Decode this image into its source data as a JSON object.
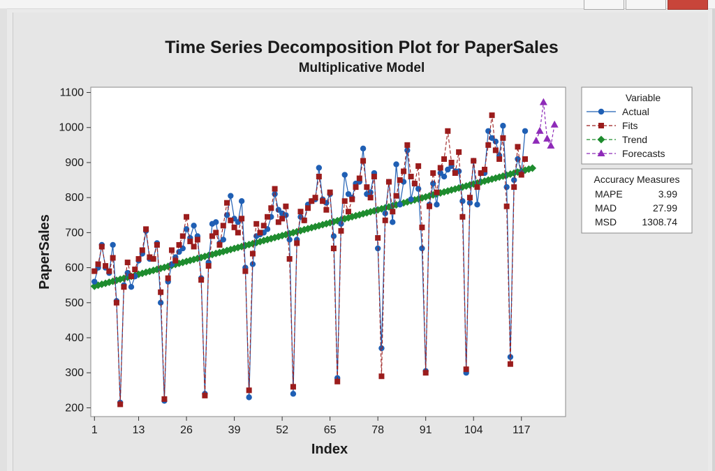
{
  "chart_data": {
    "type": "line",
    "title": "Time Series Decomposition Plot for PaperSales",
    "subtitle": "Multiplicative Model",
    "xlabel": "Index",
    "ylabel": "PaperSales",
    "xlim": [
      0,
      129
    ],
    "ylim": [
      175,
      1115
    ],
    "x_ticks": [
      1,
      13,
      26,
      39,
      52,
      65,
      78,
      91,
      104,
      117
    ],
    "y_ticks": [
      200,
      300,
      400,
      500,
      600,
      700,
      800,
      900,
      1000,
      1100
    ],
    "grid": false,
    "legend_position": "right",
    "legend_title": "Variable",
    "series": [
      {
        "name": "Actual",
        "color": "#1f5fb4",
        "marker": "circle",
        "line": "solid",
        "x_start": 1,
        "values": [
          560,
          600,
          665,
          600,
          585,
          665,
          505,
          215,
          550,
          585,
          545,
          575,
          620,
          640,
          705,
          625,
          625,
          670,
          500,
          220,
          560,
          610,
          630,
          645,
          655,
          710,
          685,
          720,
          690,
          570,
          240,
          615,
          725,
          730,
          670,
          680,
          750,
          805,
          740,
          730,
          790,
          600,
          230,
          610,
          690,
          695,
          700,
          710,
          745,
          810,
          765,
          755,
          750,
          680,
          240,
          680,
          745,
          735,
          780,
          790,
          795,
          885,
          795,
          785,
          810,
          690,
          285,
          725,
          865,
          810,
          800,
          840,
          845,
          940,
          810,
          815,
          870,
          655,
          370,
          755,
          845,
          730,
          895,
          780,
          845,
          935,
          795,
          840,
          825,
          655,
          305,
          780,
          840,
          780,
          870,
          860,
          880,
          890,
          875,
          875,
          790,
          300,
          785,
          905,
          780,
          870,
          870,
          990,
          970,
          960,
          920,
          1005,
          830,
          345,
          850,
          910,
          870,
          990
        ]
      },
      {
        "name": "Fits",
        "color": "#9b1c1c",
        "marker": "square",
        "line": "dashed",
        "x_start": 1,
        "values": [
          590,
          610,
          660,
          605,
          590,
          628,
          500,
          210,
          545,
          615,
          575,
          595,
          625,
          650,
          710,
          630,
          625,
          665,
          530,
          225,
          570,
          650,
          620,
          665,
          690,
          745,
          675,
          660,
          680,
          565,
          235,
          605,
          690,
          700,
          665,
          720,
          785,
          735,
          715,
          700,
          740,
          590,
          250,
          640,
          725,
          700,
          720,
          745,
          770,
          825,
          730,
          740,
          775,
          625,
          260,
          670,
          760,
          735,
          770,
          790,
          800,
          860,
          790,
          765,
          815,
          655,
          275,
          705,
          790,
          760,
          795,
          830,
          855,
          905,
          830,
          800,
          860,
          685,
          290,
          735,
          845,
          760,
          805,
          850,
          875,
          950,
          860,
          840,
          890,
          715,
          300,
          775,
          870,
          815,
          885,
          910,
          990,
          900,
          870,
          930,
          745,
          310,
          800,
          905,
          830,
          870,
          880,
          950,
          1035,
          935,
          910,
          970,
          775,
          325,
          830,
          945,
          865,
          910
        ]
      },
      {
        "name": "Trend",
        "color": "#1e8c2e",
        "marker": "diamond",
        "line": "dashed",
        "x": [
          1,
          120
        ],
        "values": [
          547,
          884
        ]
      },
      {
        "name": "Forecasts",
        "color": "#8e2ab8",
        "marker": "triangle",
        "line": "dashed",
        "x_start": 121,
        "values": [
          962,
          990,
          1072,
          968,
          948,
          1008
        ]
      }
    ]
  },
  "accuracy_measures": {
    "title": "Accuracy Measures",
    "rows": [
      {
        "label": "MAPE",
        "value": "3.99"
      },
      {
        "label": "MAD",
        "value": "27.99"
      },
      {
        "label": "MSD",
        "value": "1308.74"
      }
    ]
  }
}
